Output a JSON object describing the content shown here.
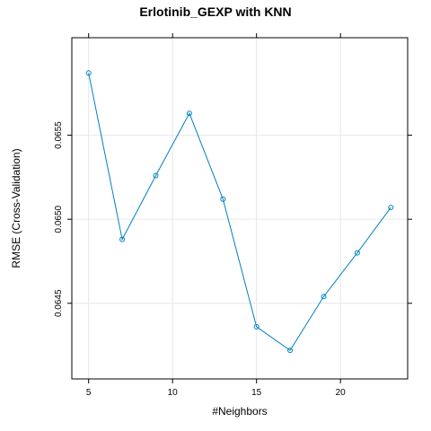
{
  "chart_data": {
    "type": "line",
    "title": "Erlotinib_GEXP with KNN",
    "xlabel": "#Neighbors",
    "ylabel": "RMSE (Cross-Validation)",
    "xlim": [
      4,
      24
    ],
    "ylim": [
      0.06405,
      0.06608
    ],
    "x_ticks": [
      5,
      10,
      15,
      20
    ],
    "y_ticks": [
      0.0645,
      0.065,
      0.0655
    ],
    "y_tick_labels": [
      "0.0645",
      "0.0650",
      "0.0655"
    ],
    "grid": true,
    "line_color": "#0080C0",
    "series": [
      {
        "x": [
          5,
          7,
          9,
          11,
          13,
          15,
          17,
          19,
          21,
          23
        ],
        "values": [
          0.06587,
          0.06488,
          0.06526,
          0.06563,
          0.06512,
          0.06436,
          0.06422,
          0.06454,
          0.0648,
          0.06507
        ]
      }
    ]
  }
}
